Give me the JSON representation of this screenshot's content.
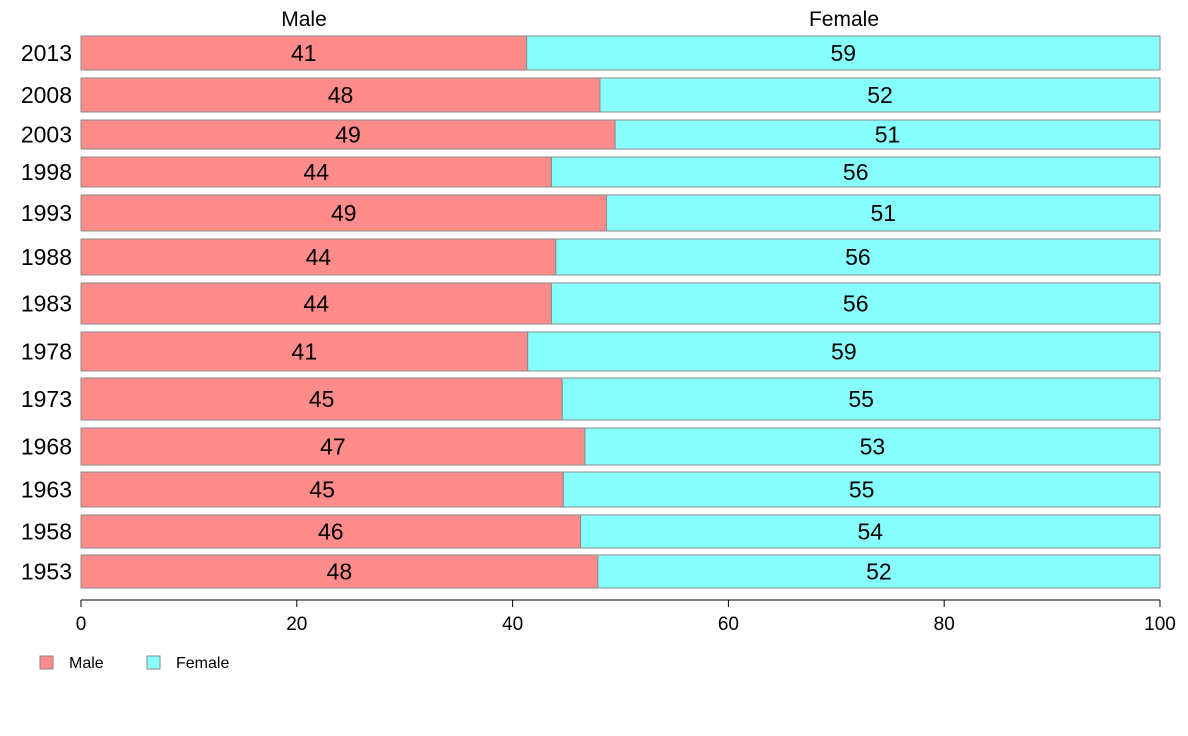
{
  "chart_data": {
    "type": "bar",
    "orientation": "horizontal",
    "stacked": true,
    "categories": [
      "2013",
      "2008",
      "2003",
      "1998",
      "1993",
      "1988",
      "1983",
      "1978",
      "1973",
      "1968",
      "1963",
      "1958",
      "1953"
    ],
    "series": [
      {
        "name": "Male",
        "color": "#ff8b8b",
        "values": [
          41.3,
          48.1,
          49.5,
          43.6,
          48.7,
          44.0,
          43.6,
          41.4,
          44.6,
          46.7,
          44.7,
          46.3,
          47.9
        ],
        "labels": [
          "41",
          "48",
          "49",
          "44",
          "49",
          "44",
          "44",
          "41",
          "45",
          "47",
          "45",
          "46",
          "48"
        ]
      },
      {
        "name": "Female",
        "color": "#88ffff",
        "values": [
          58.7,
          51.9,
          50.5,
          56.4,
          51.3,
          56.0,
          56.4,
          58.6,
          55.4,
          53.3,
          55.3,
          53.7,
          52.1
        ],
        "labels": [
          "59",
          "52",
          "51",
          "56",
          "51",
          "56",
          "56",
          "59",
          "55",
          "53",
          "55",
          "54",
          "52"
        ]
      }
    ],
    "xlim": [
      0,
      100
    ],
    "xticks": [
      "0",
      "20",
      "40",
      "60",
      "80",
      "100"
    ],
    "xlabel": "",
    "ylabel": "",
    "title": "",
    "grid": false,
    "legend": {
      "position": "bottom-left",
      "entries": [
        "Male",
        "Female"
      ]
    },
    "column_headers": [
      "Male",
      "Female"
    ]
  }
}
